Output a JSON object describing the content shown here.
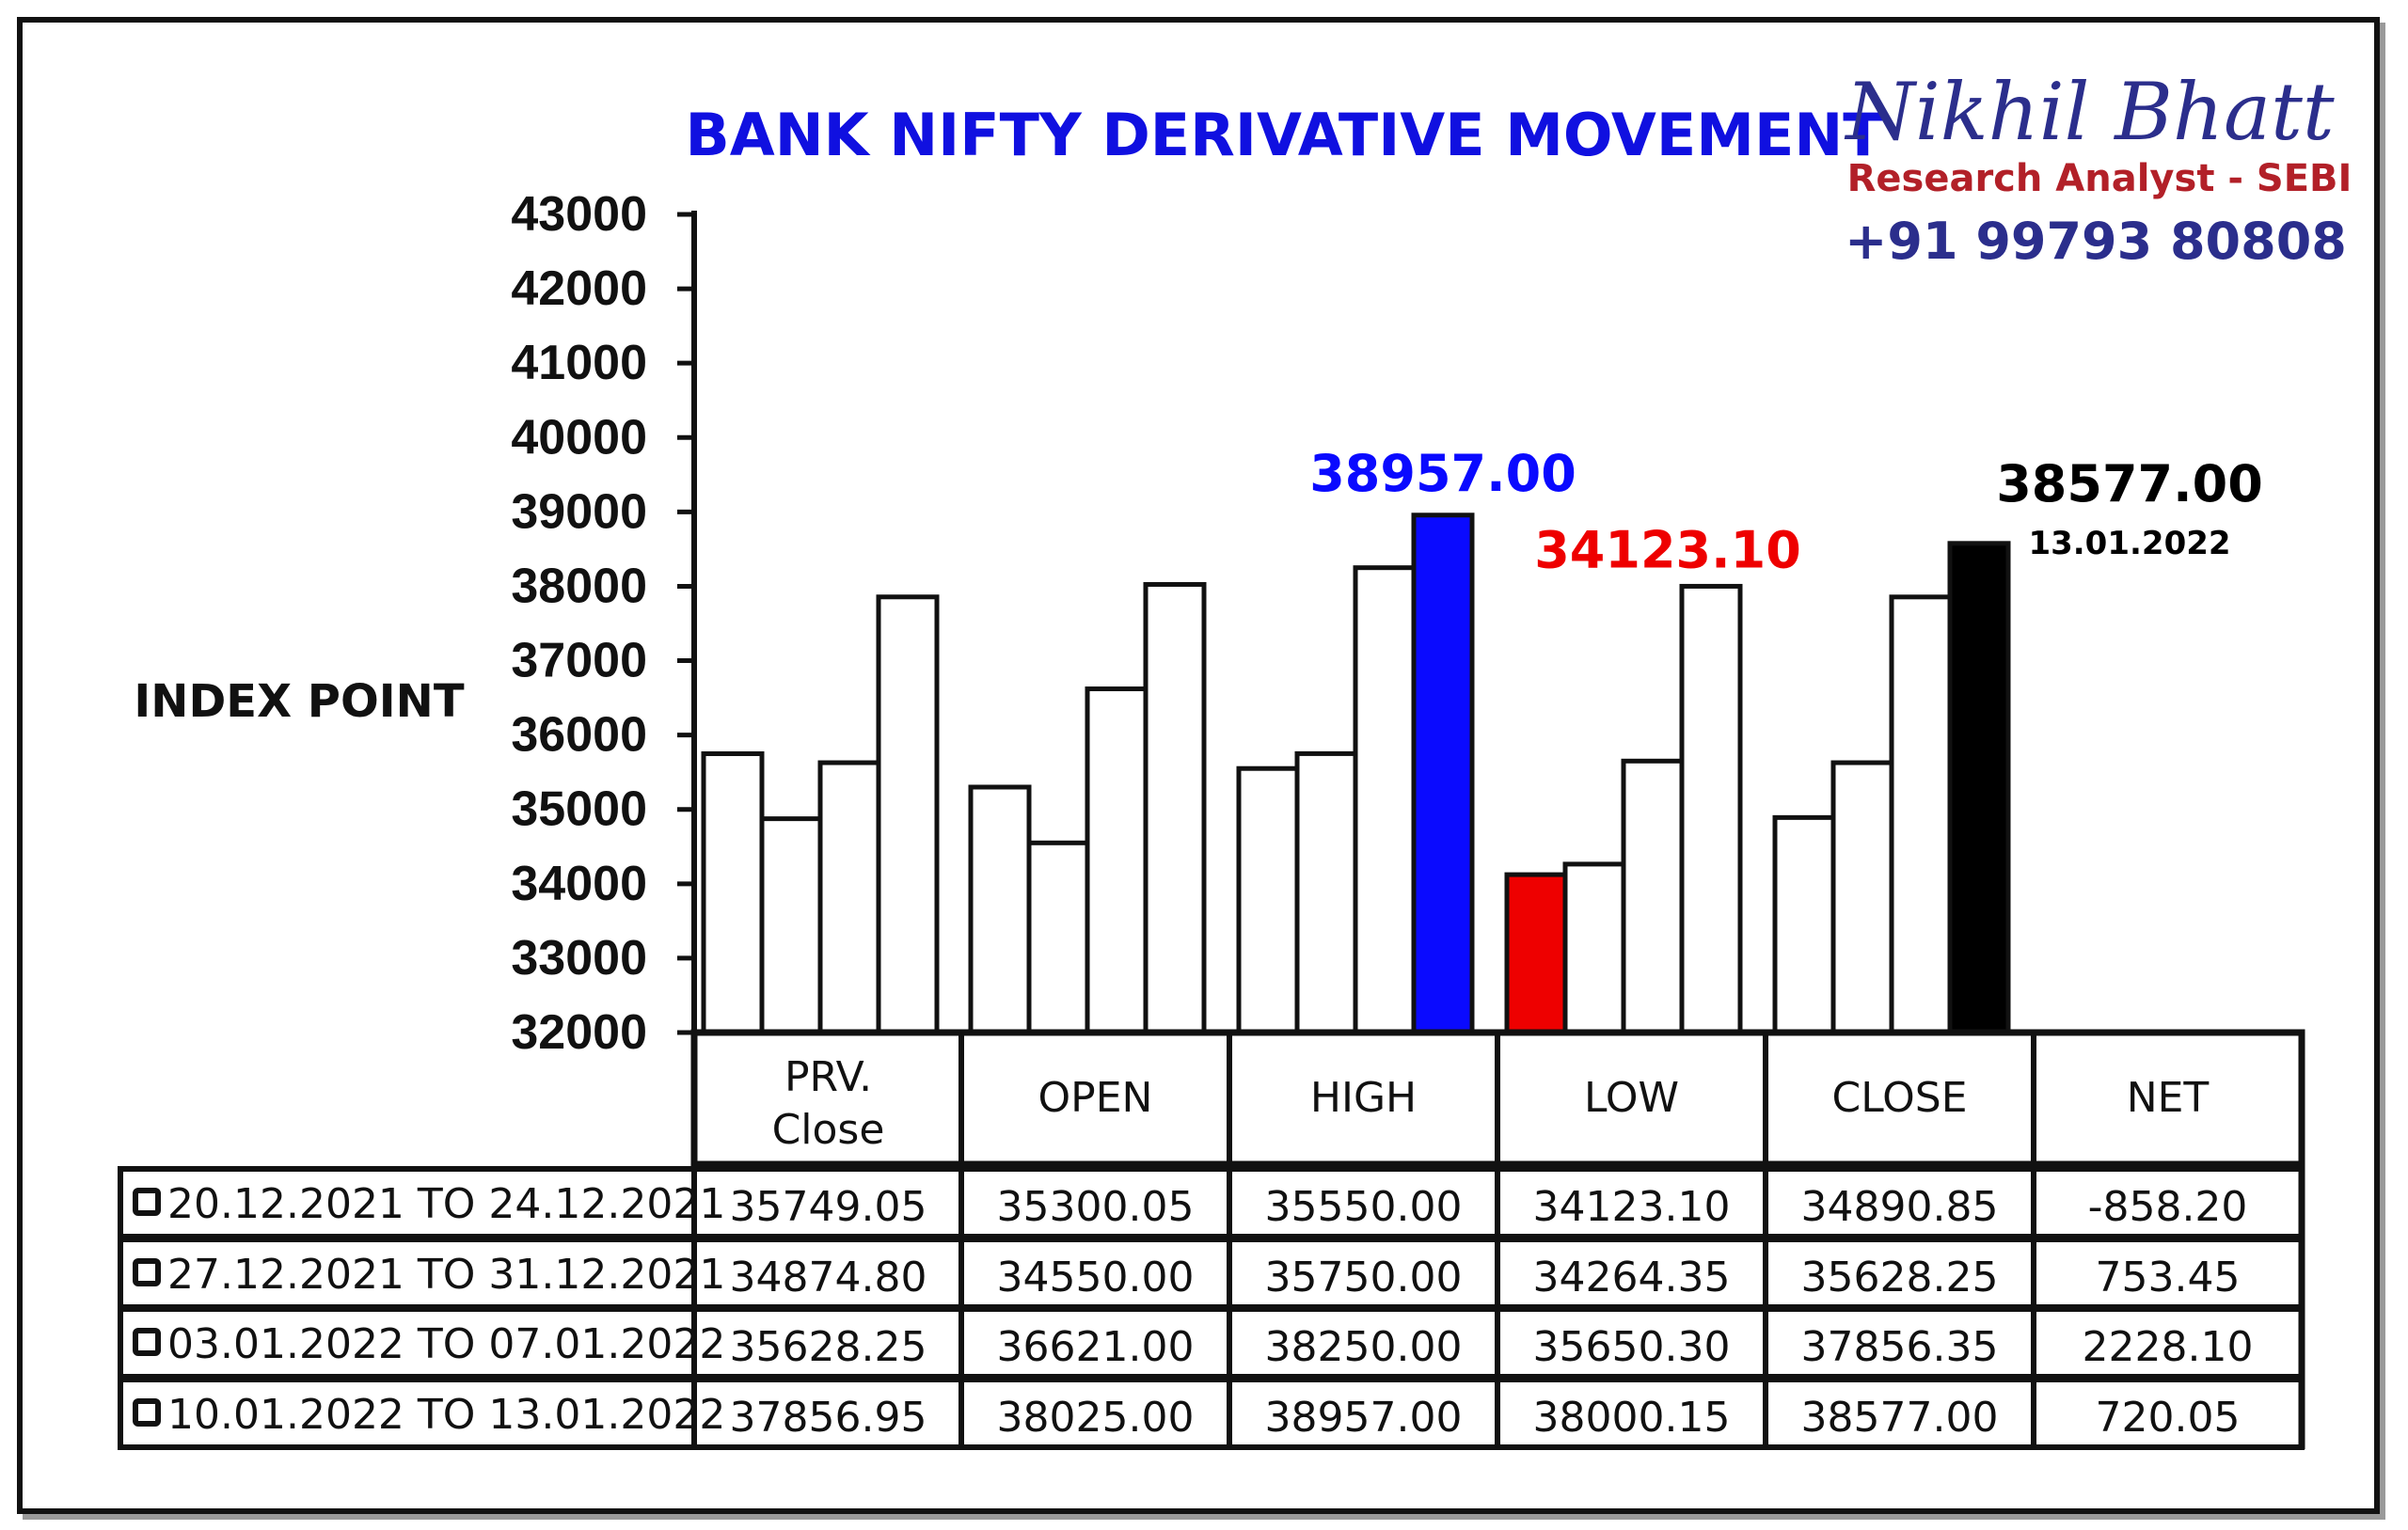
{
  "brand": {
    "name": "Nikhil Bhatt",
    "role": "Research Analyst - SEBI",
    "phone": "+91 99793 80808"
  },
  "colors": {
    "title": "#1010e0",
    "brand_name": "#2b2e8c",
    "brand_role": "#b22028",
    "brand_phone": "#2b2e8c",
    "high_highlight": "#0a0aff",
    "low_highlight": "#ee0000",
    "close_highlight": "#000000",
    "bar_default": "#ffffff"
  },
  "chart_data": {
    "type": "bar",
    "title": "BANK NIFTY DERIVATIVE MOVEMENT",
    "ylabel": "INDEX POINT",
    "ylim": [
      32000,
      43000
    ],
    "yticks": [
      "43000",
      "42000",
      "41000",
      "40000",
      "39000",
      "38000",
      "37000",
      "36000",
      "35000",
      "34000",
      "33000",
      "32000"
    ],
    "categories": [
      "PRV.\nClose",
      "OPEN",
      "HIGH",
      "LOW",
      "CLOSE"
    ],
    "category_lines": [
      [
        "PRV.",
        "Close"
      ],
      [
        "OPEN"
      ],
      [
        "HIGH"
      ],
      [
        "LOW"
      ],
      [
        "CLOSE"
      ]
    ],
    "series": [
      {
        "name": "20.12.2021 TO 24.12.2021",
        "values": [
          35749.05,
          35300.05,
          35550.0,
          34123.1,
          34890.85
        ]
      },
      {
        "name": "27.12.2021 TO 31.12.2021",
        "values": [
          34874.8,
          34550.0,
          35750.0,
          34264.35,
          35628.25
        ]
      },
      {
        "name": "03.01.2022 TO 07.01.2022",
        "values": [
          35628.25,
          36621.0,
          38250.0,
          35650.3,
          37856.35
        ]
      },
      {
        "name": "10.01.2022 TO 13.01.2022",
        "values": [
          37856.95,
          38025.0,
          38957.0,
          38000.15,
          38577.0
        ]
      }
    ],
    "highlights": [
      {
        "category": 2,
        "series": 3,
        "color": "#0a0aff"
      },
      {
        "category": 3,
        "series": 0,
        "color": "#ee0000"
      },
      {
        "category": 4,
        "series": 3,
        "color": "#000000"
      }
    ],
    "annotations": [
      {
        "text": "38957.00",
        "category": 2,
        "series": 3,
        "color": "#0a0aff"
      },
      {
        "text": "34123.10",
        "category": 3,
        "series": 0,
        "color": "#ee0000"
      },
      {
        "text": "38577.00",
        "sub": "13.01.2022",
        "category": 4,
        "series": 3,
        "color": "#000000"
      }
    ],
    "table": {
      "headers": [
        "PRV.\nClose",
        "OPEN",
        "HIGH",
        "LOW",
        "CLOSE",
        "NET"
      ],
      "header_lines": [
        [
          "PRV.",
          "Close"
        ],
        [
          "OPEN"
        ],
        [
          "HIGH"
        ],
        [
          "LOW"
        ],
        [
          "CLOSE"
        ],
        [
          "NET"
        ]
      ],
      "rows": [
        {
          "label": "20.12.2021 TO 24.12.2021",
          "cells": [
            "35749.05",
            "35300.05",
            "35550.00",
            "34123.10",
            "34890.85",
            "-858.20"
          ]
        },
        {
          "label": "27.12.2021 TO 31.12.2021",
          "cells": [
            "34874.80",
            "34550.00",
            "35750.00",
            "34264.35",
            "35628.25",
            "753.45"
          ]
        },
        {
          "label": "03.01.2022 TO 07.01.2022",
          "cells": [
            "35628.25",
            "36621.00",
            "38250.00",
            "35650.30",
            "37856.35",
            "2228.10"
          ]
        },
        {
          "label": "10.01.2022 TO 13.01.2022",
          "cells": [
            "37856.95",
            "38025.00",
            "38957.00",
            "38000.15",
            "38577.00",
            "720.05"
          ]
        }
      ]
    },
    "grid": false,
    "legend": "table-bottom"
  }
}
